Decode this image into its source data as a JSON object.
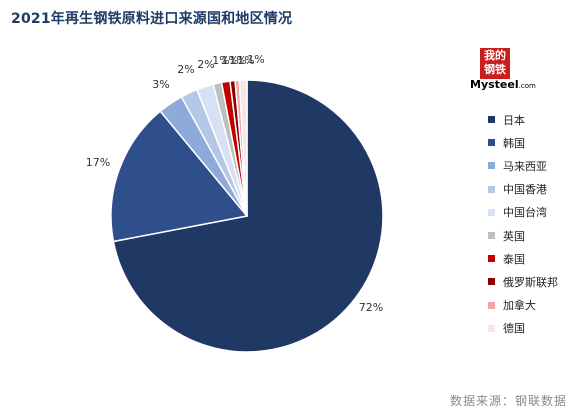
{
  "title": "2021年再生钢铁原料进口来源国和地区情况",
  "source_note": "数据来源：钢联数据",
  "logo": {
    "text_top": "我的",
    "text_bottom": "钢铁",
    "wordmark": "Mysteel",
    "wordmark_suffix": ".com"
  },
  "chart_data": {
    "type": "pie",
    "title": "2021年再生钢铁原料进口来源国和地区情况",
    "slices": [
      {
        "label": "日本",
        "value": 72,
        "value_label": "72%",
        "color": "#1f3864"
      },
      {
        "label": "韩国",
        "value": 17,
        "value_label": "17%",
        "color": "#2e4f8c"
      },
      {
        "label": "马来西亚",
        "value": 3,
        "value_label": "3%",
        "color": "#8eaadb"
      },
      {
        "label": "中国香港",
        "value": 2,
        "value_label": "2%",
        "color": "#b4c7e7"
      },
      {
        "label": "中国台湾",
        "value": 2,
        "value_label": "2%",
        "color": "#d6e2f3"
      },
      {
        "label": "英国",
        "value": 1,
        "value_label": "1%",
        "color": "#bfbfbf"
      },
      {
        "label": "泰国",
        "value": 1,
        "value_label": "1%",
        "color": "#c00000"
      },
      {
        "label": "俄罗斯联邦",
        "value": 0.6,
        "value_label": "1%",
        "color": "#8b0000"
      },
      {
        "label": "加拿大",
        "value": 0.5,
        "value_label": "1%",
        "color": "#f4a6a6"
      },
      {
        "label": "德国",
        "value": 0.9,
        "value_label": "1%",
        "color": "#f8e5e5"
      }
    ],
    "start_angle": "12 o'clock",
    "direction": "clockwise",
    "legend_position": "right"
  }
}
